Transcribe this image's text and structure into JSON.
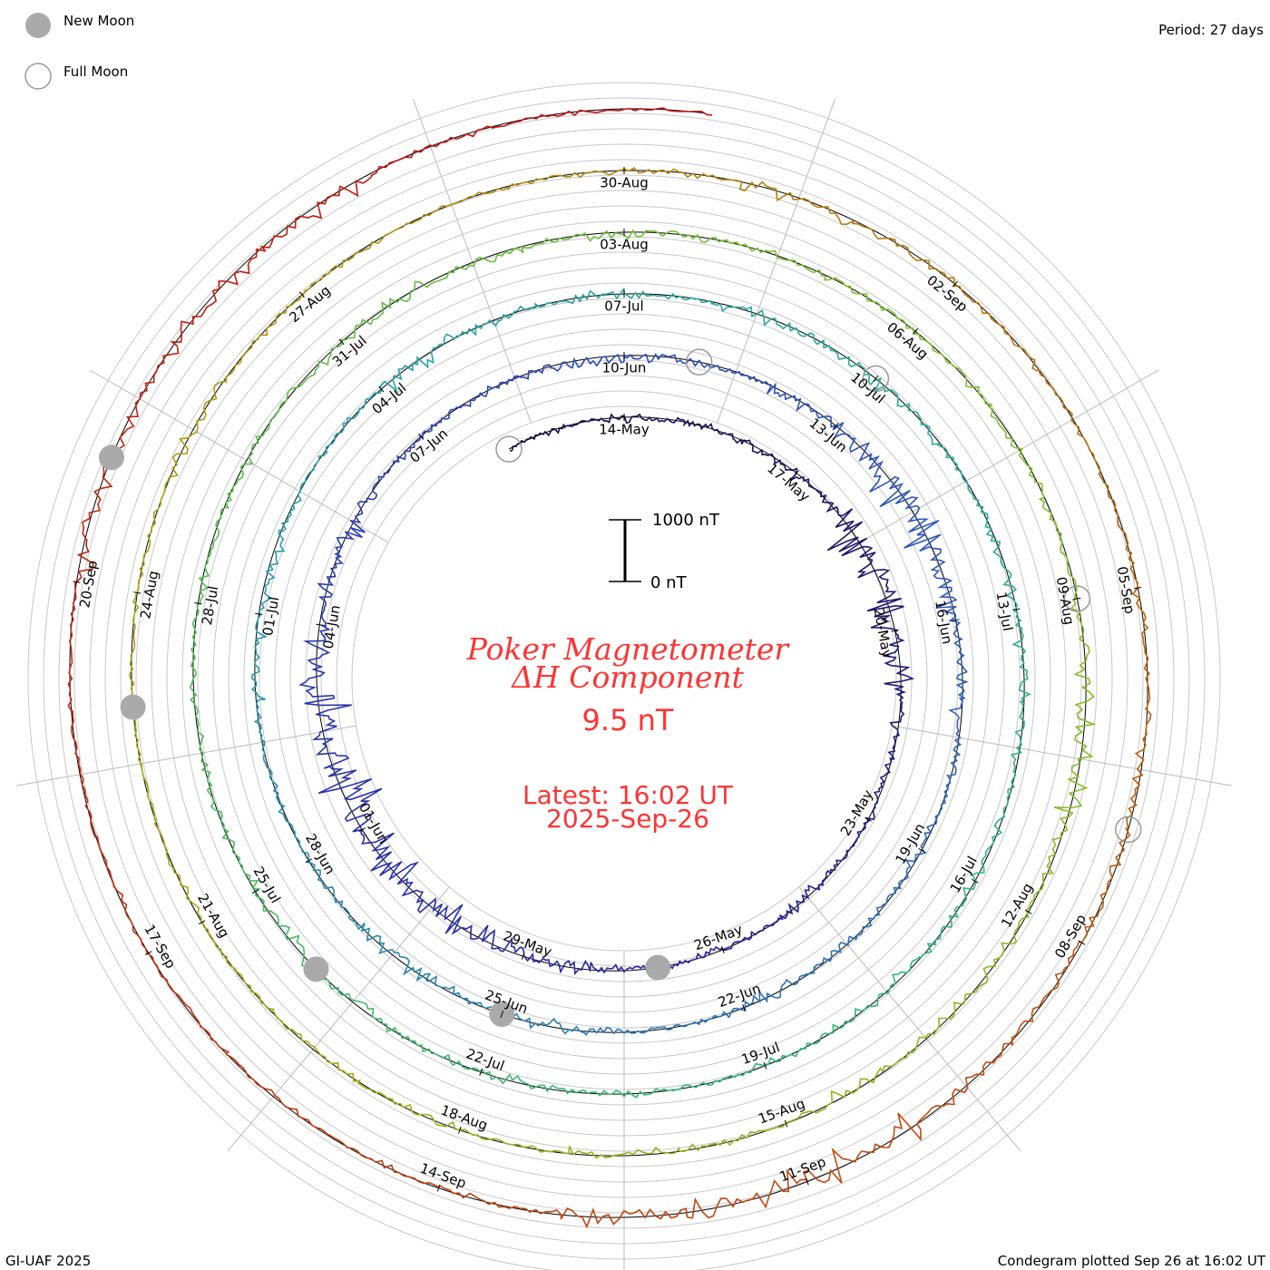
{
  "legend": {
    "new_moon": "New Moon",
    "full_moon": "Full Moon"
  },
  "period": "Period: 27 days",
  "footer_left": "GI-UAF 2025",
  "footer_right": "Condegram plotted Sep 26 at 16:02 UT",
  "scale": {
    "top": "1000 nT",
    "bottom": "0 nT"
  },
  "center": {
    "title1": "Poker Magnetometer",
    "title2": "ΔH Component",
    "value": "9.5 nT",
    "latest1": "Latest: 16:02 UT",
    "latest2": "2025-Sep-26"
  },
  "colors": {
    "new_moon": "#aaaaaa",
    "full_moon": "#999999",
    "title": "#ff3333",
    "gradient": [
      "#1a0a4a",
      "#2a2aa8",
      "#2e5cb8",
      "#2aa0b0",
      "#34b878",
      "#80c030",
      "#a8a810",
      "#c05010",
      "#c01010"
    ]
  },
  "chart_data": {
    "type": "line",
    "subtype": "condegram-spiral",
    "title": "Poker Magnetometer ΔH Component",
    "period_days": 27,
    "start_date": "2025-05-12",
    "end_date": "2025-09-26",
    "units": "nT",
    "day_labels": [
      "14-May",
      "17-May",
      "20-May",
      "23-May",
      "26-May",
      "29-May",
      "01-Jun",
      "04-Jun",
      "07-Jun",
      "10-Jun",
      "13-Jun",
      "16-Jun",
      "19-Jun",
      "22-Jun",
      "25-Jun",
      "28-Jun",
      "01-Jul",
      "04-Jul",
      "07-Jul",
      "10-Jul",
      "13-Jul",
      "16-Jul",
      "19-Jul",
      "22-Jul",
      "25-Jul",
      "28-Jul",
      "31-Jul",
      "03-Aug",
      "06-Aug",
      "09-Aug",
      "12-Aug",
      "15-Aug",
      "18-Aug",
      "21-Aug",
      "24-Aug",
      "27-Aug",
      "30-Aug",
      "02-Sep",
      "05-Sep",
      "08-Sep",
      "11-Sep",
      "14-Sep",
      "17-Sep",
      "20-Sep"
    ],
    "daily_activity_nT": [
      80,
      90,
      100,
      140,
      90,
      160,
      520,
      420,
      300,
      150,
      120,
      100,
      140,
      90,
      110,
      130,
      160,
      260,
      350,
      480,
      650,
      600,
      420,
      250,
      260,
      120,
      90,
      100,
      160,
      120,
      90,
      180,
      460,
      520,
      300,
      180,
      200,
      120,
      140,
      110,
      150,
      100,
      90,
      170,
      130,
      210,
      160,
      110,
      100,
      160,
      170,
      110,
      90,
      200,
      120,
      150,
      90,
      140,
      170,
      200,
      140,
      120,
      150,
      120,
      110,
      130,
      160,
      100,
      90,
      120,
      120,
      110,
      160,
      200,
      150,
      90,
      100,
      110,
      120,
      140,
      200,
      130,
      120,
      160,
      110,
      100,
      110,
      170,
      130,
      200,
      280,
      180,
      130,
      120,
      200,
      100,
      130,
      90,
      100,
      70,
      70,
      80,
      60,
      80,
      90,
      200,
      100,
      70,
      60,
      80,
      90,
      150,
      130,
      80,
      70,
      90,
      110,
      130,
      170,
      150,
      180,
      380,
      320,
      260,
      100,
      70,
      80,
      60,
      70,
      80,
      90,
      230,
      150,
      200,
      250,
      80,
      60,
      40
    ],
    "new_moons": [
      "2025-05-27",
      "2025-06-25",
      "2025-07-24",
      "2025-08-23",
      "2025-09-21"
    ],
    "full_moons": [
      "2025-05-12",
      "2025-06-11",
      "2025-07-10",
      "2025-08-09",
      "2025-09-07"
    ],
    "scale_bar_nT": 1000,
    "latest_value_nT": 9.5
  }
}
